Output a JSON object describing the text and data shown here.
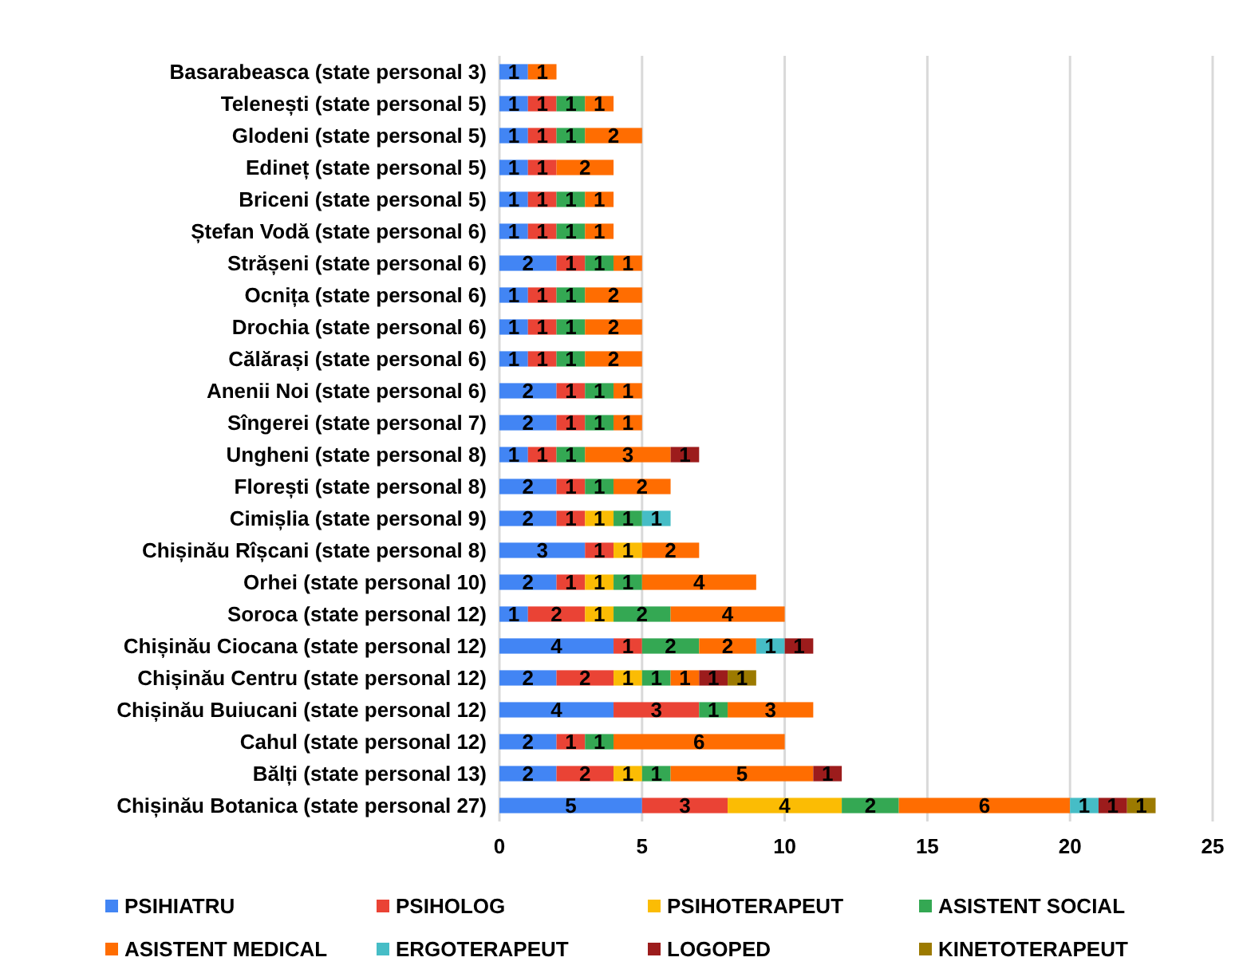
{
  "chart_data": {
    "type": "bar",
    "orientation": "horizontal",
    "stacked": true,
    "data_labels": true,
    "grid": "x",
    "legend": "bottom",
    "categories": [
      "Basarabeasca (state personal 3)",
      "Telenești (state personal 5)",
      "Glodeni (state personal 5)",
      "Edineț (state personal 5)",
      "Briceni (state personal 5)",
      "Ștefan Vodă (state personal 6)",
      "Strășeni (state personal 6)",
      "Ocnița (state personal 6)",
      "Drochia (state personal 6)",
      "Călărași (state personal 6)",
      "Anenii Noi (state personal 6)",
      "Sîngerei (state personal 7)",
      "Ungheni (state personal 8)",
      "Florești (state personal 8)",
      "Cimișlia (state personal 9)",
      "Chișinău Rîșcani (state personal 8)",
      "Orhei (state personal 10)",
      "Soroca (state personal 12)",
      "Chișinău Ciocana (state personal 12)",
      "Chișinău Centru (state personal 12)",
      "Chișinău Buiucani (state personal 12)",
      "Cahul (state personal 12)",
      "Bălți (state personal 13)",
      "Chișinău Botanica (state personal 27)"
    ],
    "xlim": [
      0,
      25
    ],
    "xticks": [
      0,
      5,
      10,
      15,
      20,
      25
    ],
    "series": [
      {
        "name": "PSIHIATRU",
        "color": "#4285f4",
        "values": [
          1,
          1,
          1,
          1,
          1,
          1,
          2,
          1,
          1,
          1,
          2,
          2,
          1,
          2,
          2,
          3,
          2,
          1,
          4,
          2,
          4,
          2,
          2,
          5
        ]
      },
      {
        "name": "PSIHOLOG",
        "color": "#ea4335",
        "values": [
          null,
          1,
          1,
          1,
          1,
          1,
          1,
          1,
          1,
          1,
          1,
          1,
          1,
          1,
          1,
          1,
          1,
          2,
          1,
          2,
          3,
          1,
          2,
          3
        ]
      },
      {
        "name": "PSIHOTERAPEUT",
        "color": "#fbbc04",
        "values": [
          null,
          null,
          null,
          null,
          null,
          null,
          null,
          null,
          null,
          null,
          null,
          null,
          null,
          null,
          1,
          1,
          1,
          1,
          null,
          1,
          null,
          null,
          1,
          4
        ]
      },
      {
        "name": "ASISTENT SOCIAL",
        "color": "#34a853",
        "values": [
          null,
          1,
          1,
          null,
          1,
          1,
          1,
          1,
          1,
          1,
          1,
          1,
          1,
          1,
          1,
          null,
          1,
          2,
          2,
          1,
          1,
          1,
          1,
          2
        ]
      },
      {
        "name": "ASISTENT MEDICAL",
        "color": "#ff6d01",
        "values": [
          1,
          1,
          2,
          2,
          1,
          1,
          1,
          2,
          2,
          2,
          1,
          1,
          3,
          2,
          null,
          2,
          4,
          4,
          2,
          1,
          3,
          6,
          5,
          6
        ]
      },
      {
        "name": "ERGOTERAPEUT",
        "color": "#46bdc6",
        "values": [
          null,
          null,
          null,
          null,
          null,
          null,
          null,
          null,
          null,
          null,
          null,
          null,
          null,
          null,
          1,
          null,
          null,
          null,
          1,
          null,
          null,
          null,
          null,
          1
        ]
      },
      {
        "name": "LOGOPED",
        "color": "#9c1c1c",
        "values": [
          null,
          null,
          null,
          null,
          null,
          null,
          null,
          null,
          null,
          null,
          null,
          null,
          1,
          null,
          null,
          null,
          null,
          null,
          1,
          1,
          null,
          null,
          1,
          1
        ]
      },
      {
        "name": "KINETOTERAPEUT",
        "color": "#9c7a00",
        "values": [
          null,
          null,
          null,
          null,
          null,
          null,
          null,
          null,
          null,
          null,
          null,
          null,
          null,
          null,
          null,
          null,
          null,
          null,
          null,
          1,
          null,
          null,
          null,
          1
        ]
      }
    ]
  }
}
